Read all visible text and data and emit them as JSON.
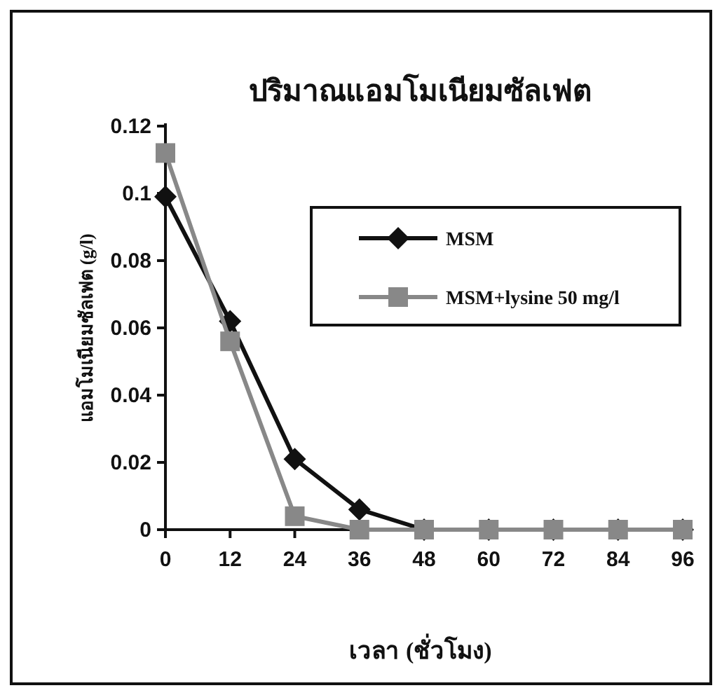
{
  "chart_data": {
    "type": "line",
    "title": "ปริมาณแอมโมเนียมซัลเฟต",
    "xlabel": "เวลา (ชั่วโมง)",
    "ylabel": "แอมโมเนียมซัลเฟต (g/l)",
    "categories": [
      "0",
      "12",
      "24",
      "36",
      "48",
      "60",
      "72",
      "84",
      "96"
    ],
    "series": [
      {
        "name": "MSM",
        "color": "#111111",
        "marker": "diamond",
        "values": [
          0.099,
          0.062,
          0.021,
          0.006,
          0,
          0,
          0,
          0,
          0
        ]
      },
      {
        "name": "MSM+lysine 50 mg/l",
        "color": "#888888",
        "marker": "square",
        "values": [
          0.112,
          0.056,
          0.004,
          0,
          0,
          0,
          0,
          0,
          0
        ]
      }
    ],
    "ylim": [
      0,
      0.12
    ],
    "yticks": [
      0,
      0.02,
      0.04,
      0.06,
      0.08,
      0.1,
      0.12
    ],
    "grid": false,
    "legend": "top right",
    "line_style": "solid"
  }
}
